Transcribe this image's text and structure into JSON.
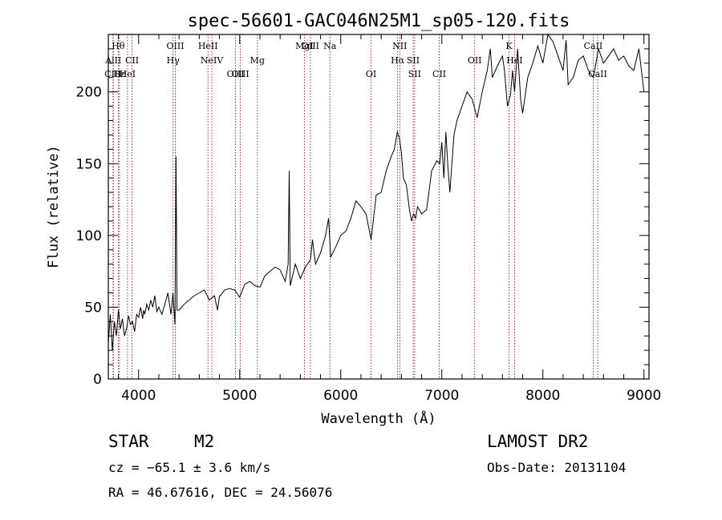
{
  "chart_data": {
    "type": "line",
    "title": "spec-56601-GAC046N25M1_sp05-120.fits",
    "xlabel": "Wavelength (Å)",
    "ylabel": "Flux (relative)",
    "xlim": [
      3700,
      9050
    ],
    "ylim": [
      0,
      240
    ],
    "xticks": [
      4000,
      5000,
      6000,
      7000,
      8000,
      9000
    ],
    "yticks": [
      0,
      50,
      100,
      150,
      200
    ],
    "grid": false,
    "series": [
      {
        "x": [
          3700,
          3720,
          3740,
          3760,
          3780,
          3800,
          3820,
          3840,
          3860,
          3880,
          3900,
          3920,
          3940,
          3960,
          3980,
          4000,
          4020,
          4040,
          4050,
          4060,
          4080,
          4100,
          4120,
          4140,
          4160,
          4180,
          4200,
          4230,
          4260,
          4290,
          4320,
          4340,
          4360,
          4370,
          4380,
          4400,
          4450,
          4500,
          4550,
          4600,
          4650,
          4700,
          4750,
          4780,
          4800,
          4810,
          4850,
          4900,
          4950,
          5000,
          5050,
          5100,
          5150,
          5200,
          5250,
          5300,
          5350,
          5400,
          5450,
          5480,
          5490,
          5500,
          5550,
          5600,
          5650,
          5700,
          5720,
          5750,
          5800,
          5850,
          5880,
          5900,
          5950,
          6000,
          6050,
          6100,
          6150,
          6200,
          6250,
          6300,
          6350,
          6400,
          6450,
          6500,
          6530,
          6560,
          6580,
          6600,
          6620,
          6650,
          6680,
          6700,
          6720,
          6740,
          6760,
          6800,
          6850,
          6900,
          6950,
          6980,
          7000,
          7020,
          7040,
          7060,
          7080,
          7100,
          7120,
          7150,
          7200,
          7250,
          7300,
          7350,
          7400,
          7450,
          7480,
          7500,
          7550,
          7600,
          7620,
          7650,
          7680,
          7700,
          7720,
          7750,
          7780,
          7800,
          7850,
          7900,
          7950,
          8000,
          8050,
          8100,
          8150,
          8200,
          8230,
          8250,
          8300,
          8350,
          8400,
          8450,
          8500,
          8550,
          8600,
          8650,
          8700,
          8750,
          8800,
          8850,
          8900,
          8950,
          9000
        ],
        "y": [
          25,
          45,
          20,
          40,
          30,
          48,
          35,
          42,
          30,
          35,
          44,
          38,
          40,
          33,
          45,
          43,
          50,
          42,
          48,
          45,
          52,
          48,
          55,
          50,
          58,
          47,
          50,
          45,
          52,
          60,
          45,
          60,
          38,
          155,
          48,
          48,
          52,
          55,
          58,
          60,
          62,
          55,
          58,
          48,
          58,
          58,
          62,
          63,
          62,
          57,
          66,
          68,
          65,
          64,
          72,
          75,
          78,
          76,
          68,
          80,
          145,
          65,
          80,
          70,
          78,
          83,
          97,
          80,
          88,
          100,
          112,
          85,
          92,
          100,
          103,
          112,
          124,
          120,
          115,
          97,
          128,
          130,
          145,
          155,
          160,
          172,
          168,
          158,
          140,
          135,
          118,
          110,
          115,
          112,
          120,
          115,
          118,
          145,
          152,
          150,
          165,
          140,
          172,
          148,
          130,
          150,
          170,
          180,
          190,
          200,
          195,
          182,
          200,
          215,
          230,
          210,
          218,
          225,
          215,
          190,
          198,
          215,
          200,
          230,
          195,
          185,
          210,
          220,
          232,
          220,
          240,
          235,
          225,
          215,
          236,
          205,
          210,
          222,
          225,
          215,
          210,
          230,
          220,
          225,
          230,
          222,
          225,
          218,
          215,
          230,
          200
        ]
      }
    ],
    "emission_lines": [
      {
        "label": "Hθ",
        "x": 3798,
        "row": 1
      },
      {
        "label": "AlII",
        "x": 3750,
        "row": 2
      },
      {
        "label": "CII",
        "x": 3935,
        "row": 2
      },
      {
        "label": "CIII",
        "x": 3747,
        "row": 3
      },
      {
        "label": "Hε",
        "x": 3810,
        "row": 3
      },
      {
        "label": "HeI",
        "x": 3890,
        "row": 3
      },
      {
        "label": "OIII",
        "x": 4363,
        "row": 1
      },
      {
        "label": "Hγ",
        "x": 4341,
        "row": 2
      },
      {
        "label": "HeII",
        "x": 4686,
        "row": 1
      },
      {
        "label": "NeIV",
        "x": 4725,
        "row": 2
      },
      {
        "label": "Mg",
        "x": 5175,
        "row": 2
      },
      {
        "label": "OIII",
        "x": 4959,
        "row": 3
      },
      {
        "label": "OIII",
        "x": 5007,
        "row": 3
      },
      {
        "label": "MgI",
        "x": 5640,
        "row": 1
      },
      {
        "label": "OIII",
        "x": 5700,
        "row": 1
      },
      {
        "label": "Na",
        "x": 5893,
        "row": 1
      },
      {
        "label": "OI",
        "x": 6300,
        "row": 3
      },
      {
        "label": "NII",
        "x": 6584,
        "row": 1
      },
      {
        "label": "Hα",
        "x": 6563,
        "row": 2
      },
      {
        "label": "SII",
        "x": 6716,
        "row": 2
      },
      {
        "label": "SII",
        "x": 6731,
        "row": 3
      },
      {
        "label": "CII",
        "x": 6975,
        "row": 3
      },
      {
        "label": "OII",
        "x": 7325,
        "row": 2
      },
      {
        "label": "K",
        "x": 7665,
        "row": 1
      },
      {
        "label": "HeI",
        "x": 7720,
        "row": 2
      },
      {
        "label": "CaII",
        "x": 8498,
        "row": 1
      },
      {
        "label": "CaII",
        "x": 8542,
        "row": 3
      }
    ]
  },
  "info": {
    "object_class": "STAR",
    "subclass": "M2",
    "survey": "LAMOST DR2",
    "cz": "cz = −65.1 ± 3.6 km/s",
    "obs_date": "Obs-Date: 20131104",
    "radec": "RA =  46.67616, DEC =  24.56076"
  }
}
